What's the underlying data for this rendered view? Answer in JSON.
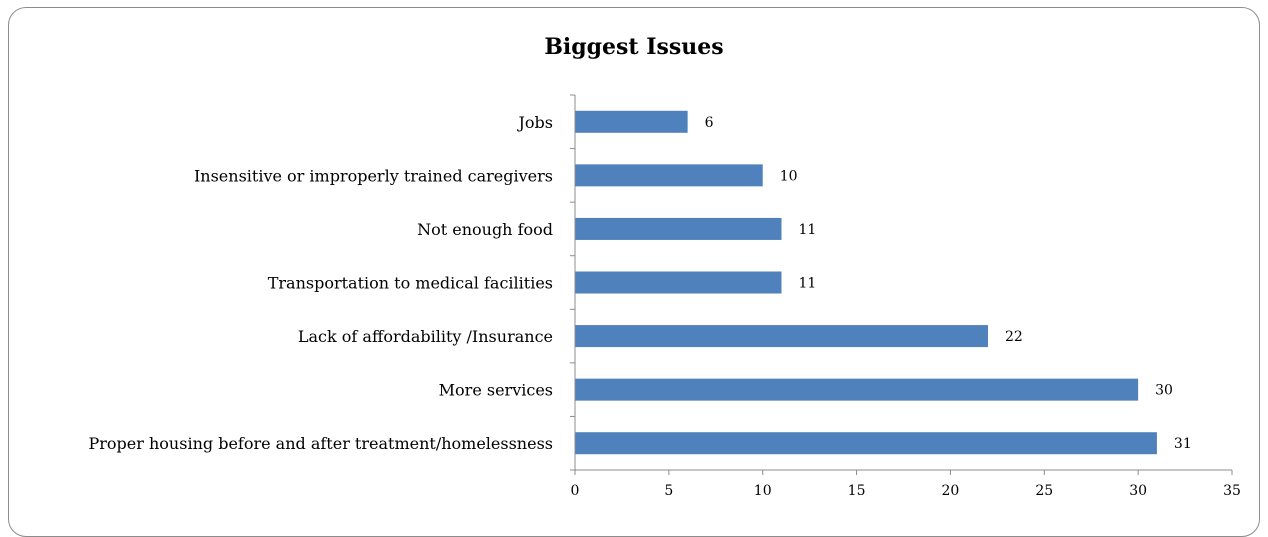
{
  "chart_data": {
    "type": "bar",
    "orientation": "horizontal",
    "title": "Biggest Issues",
    "xlabel": "",
    "ylabel": "",
    "categories": [
      "Proper housing before and after treatment/homelessness",
      "More services",
      "Lack of affordability /Insurance",
      "Transportation to medical facilities",
      "Not enough food",
      "Insensitive or improperly trained caregivers",
      "Jobs"
    ],
    "values": [
      31,
      30,
      22,
      11,
      11,
      10,
      6
    ],
    "xlim": [
      0,
      35
    ],
    "xticks": [
      "0",
      "5",
      "10",
      "15",
      "20",
      "25",
      "30",
      "35"
    ],
    "grid": false,
    "legend": "none",
    "data_labels": true,
    "bar_color": "#4f81bd",
    "frame_color": "#8c8c8c"
  }
}
